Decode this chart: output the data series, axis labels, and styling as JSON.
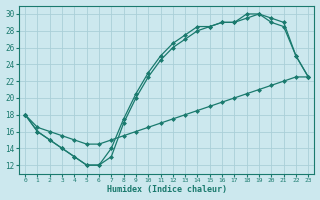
{
  "xlabel": "Humidex (Indice chaleur)",
  "bg_color": "#cce8ee",
  "grid_color": "#aacfd8",
  "line_color": "#1a7a6e",
  "xlim": [
    -0.5,
    23.5
  ],
  "ylim": [
    11,
    31
  ],
  "xticks": [
    0,
    1,
    2,
    3,
    4,
    5,
    6,
    7,
    8,
    9,
    10,
    11,
    12,
    13,
    14,
    15,
    16,
    17,
    18,
    19,
    20,
    21,
    22,
    23
  ],
  "yticks": [
    12,
    14,
    16,
    18,
    20,
    22,
    24,
    26,
    28,
    30
  ],
  "line1_x": [
    0,
    1,
    2,
    3,
    4,
    5,
    6,
    7,
    8,
    9,
    10,
    11,
    12,
    13,
    14,
    15,
    16,
    17,
    18,
    19,
    20,
    21,
    22,
    23
  ],
  "line1_y": [
    18,
    16,
    15,
    14,
    13,
    12,
    12,
    14,
    17.5,
    20.5,
    23,
    25,
    26.5,
    27.5,
    28.5,
    28.5,
    29,
    29,
    30,
    30,
    29,
    28.5,
    25,
    22.5
  ],
  "line2_x": [
    0,
    1,
    2,
    3,
    4,
    5,
    6,
    7,
    8,
    9,
    10,
    11,
    12,
    13,
    14,
    15,
    16,
    17,
    18,
    19,
    20,
    21,
    22,
    23
  ],
  "line2_y": [
    18,
    16,
    15,
    14,
    13,
    12,
    12,
    13,
    17,
    20,
    22.5,
    24.5,
    26,
    27,
    28,
    28.5,
    29,
    29,
    29.5,
    30,
    29.5,
    29,
    25,
    22.5
  ],
  "line3_x": [
    0,
    1,
    2,
    3,
    4,
    5,
    6,
    7,
    8,
    9,
    10,
    11,
    12,
    13,
    14,
    15,
    16,
    17,
    18,
    19,
    20,
    21,
    22,
    23
  ],
  "line3_y": [
    18,
    16.5,
    16,
    15.5,
    15,
    14.5,
    14.5,
    15,
    15.5,
    16,
    16.5,
    17,
    17.5,
    18,
    18.5,
    19,
    19.5,
    20,
    20.5,
    21,
    21.5,
    22,
    22.5,
    22.5
  ]
}
